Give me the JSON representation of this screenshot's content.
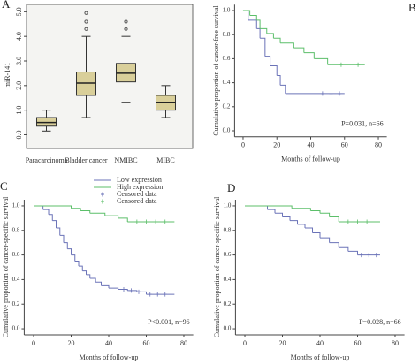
{
  "chart_data": [
    {
      "type": "box",
      "panel": "A",
      "ylabel": "miR-141",
      "categories": [
        "Paracarcinoma",
        "Bladder cancer",
        "NMIBC",
        "MIBC"
      ],
      "color": "#d9cf9a",
      "whisker_low": [
        0.15,
        0.7,
        1.3,
        0.7
      ],
      "q1": [
        0.35,
        1.6,
        2.15,
        1.0
      ],
      "median": [
        0.5,
        2.1,
        2.5,
        1.3
      ],
      "q3": [
        0.7,
        2.55,
        2.9,
        1.6
      ],
      "whisker_high": [
        1.0,
        4.0,
        4.0,
        2.0
      ],
      "outliers": [
        [],
        [
          4.3,
          4.6,
          4.95
        ],
        [
          4.3,
          4.6
        ],
        []
      ],
      "ylim": [
        -0.45,
        5.3
      ],
      "yticks": [
        {
          "value": 0,
          "label": "0.0"
        },
        {
          "value": 1,
          "label": "1.0"
        },
        {
          "value": 2,
          "label": "2.0"
        },
        {
          "value": 3,
          "label": "3.0"
        },
        {
          "value": 4,
          "label": "4.0"
        },
        {
          "value": 5,
          "label": "5.0"
        }
      ]
    },
    {
      "type": "line",
      "panel": "B",
      "xlabel": "Months of follow-up",
      "ylabel": "Cumulative proportion of cancer-free survival",
      "annotation": "P=0.031, n=66",
      "xlim": [
        -5,
        85
      ],
      "xticks": [
        0,
        20,
        40,
        60,
        80
      ],
      "ylim": [
        -0.05,
        1.05
      ],
      "yticks": [
        {
          "value": 0,
          "label": "0.0"
        },
        {
          "value": 0.2,
          "label": "0.2"
        },
        {
          "value": 0.4,
          "label": "0.4"
        },
        {
          "value": 0.6,
          "label": "0.6"
        },
        {
          "value": 0.8,
          "label": "0.8"
        },
        {
          "value": 1,
          "label": "1.0"
        }
      ],
      "series": [
        {
          "color": "#6b73b8",
          "x": [
            0,
            3,
            8,
            10,
            13,
            16,
            20,
            22,
            25,
            60
          ],
          "values": [
            1.0,
            0.92,
            0.85,
            0.77,
            0.62,
            0.54,
            0.46,
            0.38,
            0.31,
            0.31
          ],
          "censored": [
            47,
            52,
            57
          ]
        },
        {
          "color": "#5cbf6a",
          "x": [
            0,
            4,
            8,
            10,
            14,
            18,
            22,
            30,
            36,
            42,
            50,
            72
          ],
          "values": [
            1.0,
            0.96,
            0.92,
            0.85,
            0.81,
            0.77,
            0.73,
            0.69,
            0.65,
            0.6,
            0.55,
            0.55
          ],
          "censored": [
            58,
            68
          ]
        }
      ]
    },
    {
      "type": "line",
      "panel": "C",
      "xlabel": "Months of follow-up",
      "ylabel": "Cumulative proportion of cancer-specific survival",
      "annotation": "P<0.001, n=96",
      "xlim": [
        -5,
        85
      ],
      "xticks": [
        0,
        20,
        40,
        60,
        80
      ],
      "ylim": [
        -0.05,
        1.05
      ],
      "yticks": [
        {
          "value": 0,
          "label": "0.0"
        },
        {
          "value": 0.2,
          "label": "0.2"
        },
        {
          "value": 0.4,
          "label": "0.4"
        },
        {
          "value": 0.6,
          "label": "0.6"
        },
        {
          "value": 0.8,
          "label": "0.8"
        },
        {
          "value": 1,
          "label": "1.0"
        }
      ],
      "series": [
        {
          "name": "Low expression",
          "censor_label": "Censored data",
          "color": "#6b73b8",
          "x": [
            0,
            5,
            8,
            10,
            12,
            14,
            16,
            18,
            20,
            22,
            24,
            26,
            28,
            30,
            33,
            36,
            40,
            45,
            50,
            55,
            60,
            75
          ],
          "values": [
            1.0,
            0.97,
            0.93,
            0.88,
            0.82,
            0.76,
            0.7,
            0.65,
            0.6,
            0.55,
            0.51,
            0.47,
            0.44,
            0.41,
            0.38,
            0.35,
            0.33,
            0.32,
            0.31,
            0.3,
            0.28,
            0.28
          ],
          "censored": [
            48,
            52,
            56,
            62,
            66,
            70
          ]
        },
        {
          "name": "High expression",
          "censor_label": "Censored data",
          "color": "#5cbf6a",
          "x": [
            0,
            20,
            25,
            30,
            38,
            45,
            50,
            75
          ],
          "values": [
            1.0,
            0.98,
            0.96,
            0.94,
            0.92,
            0.9,
            0.87,
            0.87
          ],
          "censored": [
            55,
            60,
            65,
            70
          ]
        }
      ]
    },
    {
      "type": "line",
      "panel": "D",
      "xlabel": "Months of follow-up",
      "ylabel": "Cumulative proportion of cancer-specific survival",
      "annotation": "P=0.028, n=66",
      "xlim": [
        -5,
        85
      ],
      "xticks": [
        0,
        20,
        40,
        60,
        80
      ],
      "ylim": [
        -0.05,
        1.05
      ],
      "yticks": [
        {
          "value": 0,
          "label": "0.0"
        },
        {
          "value": 0.2,
          "label": "0.2"
        },
        {
          "value": 0.4,
          "label": "0.4"
        },
        {
          "value": 0.6,
          "label": "0.6"
        },
        {
          "value": 0.8,
          "label": "0.8"
        },
        {
          "value": 1,
          "label": "1.0"
        }
      ],
      "series": [
        {
          "color": "#6b73b8",
          "x": [
            0,
            12,
            16,
            20,
            24,
            28,
            32,
            36,
            40,
            45,
            50,
            55,
            60,
            72
          ],
          "values": [
            1.0,
            0.97,
            0.94,
            0.91,
            0.88,
            0.85,
            0.82,
            0.78,
            0.74,
            0.7,
            0.66,
            0.63,
            0.6,
            0.6
          ],
          "censored": [
            62,
            66,
            70
          ]
        },
        {
          "color": "#5cbf6a",
          "x": [
            0,
            25,
            35,
            40,
            45,
            50,
            72
          ],
          "values": [
            1.0,
            0.98,
            0.96,
            0.94,
            0.91,
            0.87,
            0.87
          ],
          "censored": [
            55,
            60,
            65
          ]
        }
      ]
    }
  ]
}
